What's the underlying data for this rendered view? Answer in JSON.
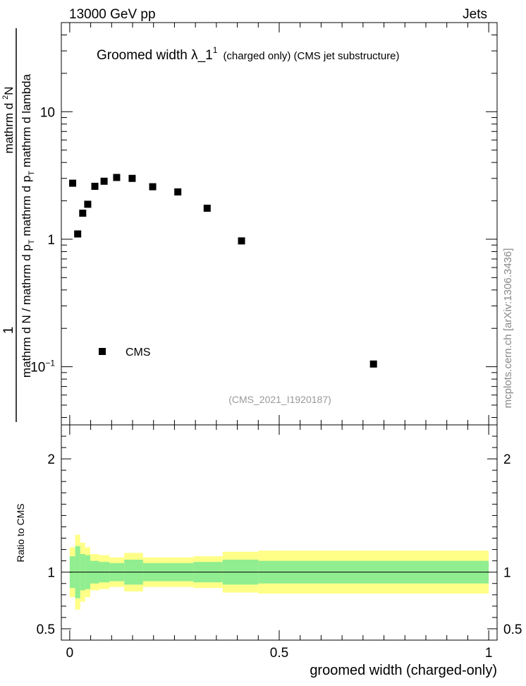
{
  "header": {
    "left": "13000 GeV pp",
    "right": "Jets"
  },
  "side_label": "mcplots.cern.ch [arXiv:1306.3436]",
  "analysis_label": "(CMS_2021_I1920187)",
  "colors": {
    "data": "#000000",
    "band_inner": "#90ee90",
    "band_outer": "#ffff88",
    "axis": "#000000",
    "note": "#888888"
  },
  "chart_data": [
    {
      "type": "scatter",
      "panel": "main",
      "title_main": "Groomed width  λ_1",
      "title_sup": "1",
      "title_suffix": "(charged only) (CMS jet substructure)",
      "ylabel_line1": "1",
      "ylabel_line2": "mathrm d N / mathrm d p_T mathrm d p_T mathrm d lambda",
      "ylabel_display": {
        "num_pre": "mathrm d",
        "num_sup": "2",
        "num_post": "N",
        "den_a": "mathrm d N / mathrm d p",
        "den_a_sub": "T",
        "den_b": "mathrm d p",
        "den_b_sub": "T",
        "den_c": "mathrm d lambda"
      },
      "yscale": "log",
      "xlim": [
        -0.02,
        1.02
      ],
      "ylim": [
        0.035,
        50
      ],
      "yticks": [
        {
          "value": 10,
          "label": "10"
        },
        {
          "value": 1,
          "label": "1"
        },
        {
          "value": 0.1,
          "label_base": "10",
          "label_exp": "−1"
        }
      ],
      "legend": {
        "position": "bottom-left",
        "entries": [
          "CMS"
        ]
      },
      "series": [
        {
          "name": "CMS",
          "marker": "square",
          "x": [
            0.007,
            0.019,
            0.031,
            0.043,
            0.06,
            0.082,
            0.112,
            0.149,
            0.198,
            0.258,
            0.328,
            0.41,
            0.725
          ],
          "y": [
            2.75,
            1.1,
            1.6,
            1.88,
            2.6,
            2.85,
            3.05,
            3.0,
            2.58,
            2.35,
            1.75,
            0.97,
            0.105
          ]
        }
      ]
    },
    {
      "type": "area",
      "panel": "ratio",
      "ylabel": "Ratio to CMS",
      "xlabel": "groomed width (charged-only)",
      "xlim": [
        -0.02,
        1.02
      ],
      "ylim": [
        0.4,
        2.3
      ],
      "xticks": [
        {
          "value": 0,
          "label": "0"
        },
        {
          "value": 0.5,
          "label": "0.5"
        },
        {
          "value": 1,
          "label": "1"
        }
      ],
      "yticks": [
        {
          "value": 0.5,
          "label": "0.5"
        },
        {
          "value": 1,
          "label": "1"
        },
        {
          "value": 2,
          "label": "2"
        }
      ],
      "reference_line": 1,
      "bins": [
        {
          "x_lo": 0.0,
          "x_hi": 0.013,
          "inner": [
            0.86,
            1.14
          ],
          "outer": [
            0.78,
            1.22
          ]
        },
        {
          "x_lo": 0.013,
          "x_hi": 0.025,
          "inner": [
            0.77,
            1.23
          ],
          "outer": [
            0.67,
            1.33
          ]
        },
        {
          "x_lo": 0.025,
          "x_hi": 0.037,
          "inner": [
            0.84,
            1.16
          ],
          "outer": [
            0.74,
            1.26
          ]
        },
        {
          "x_lo": 0.037,
          "x_hi": 0.049,
          "inner": [
            0.85,
            1.15
          ],
          "outer": [
            0.78,
            1.22
          ]
        },
        {
          "x_lo": 0.049,
          "x_hi": 0.07,
          "inner": [
            0.9,
            1.1
          ],
          "outer": [
            0.84,
            1.16
          ]
        },
        {
          "x_lo": 0.07,
          "x_hi": 0.095,
          "inner": [
            0.91,
            1.09
          ],
          "outer": [
            0.85,
            1.15
          ]
        },
        {
          "x_lo": 0.095,
          "x_hi": 0.13,
          "inner": [
            0.92,
            1.08
          ],
          "outer": [
            0.87,
            1.13
          ]
        },
        {
          "x_lo": 0.13,
          "x_hi": 0.175,
          "inner": [
            0.89,
            1.11
          ],
          "outer": [
            0.83,
            1.17
          ]
        },
        {
          "x_lo": 0.175,
          "x_hi": 0.23,
          "inner": [
            0.92,
            1.08
          ],
          "outer": [
            0.87,
            1.13
          ]
        },
        {
          "x_lo": 0.23,
          "x_hi": 0.295,
          "inner": [
            0.92,
            1.08
          ],
          "outer": [
            0.87,
            1.13
          ]
        },
        {
          "x_lo": 0.295,
          "x_hi": 0.365,
          "inner": [
            0.91,
            1.09
          ],
          "outer": [
            0.86,
            1.14
          ]
        },
        {
          "x_lo": 0.365,
          "x_hi": 0.45,
          "inner": [
            0.89,
            1.11
          ],
          "outer": [
            0.82,
            1.18
          ]
        },
        {
          "x_lo": 0.45,
          "x_hi": 1.0,
          "inner": [
            0.9,
            1.1
          ],
          "outer": [
            0.81,
            1.19
          ]
        }
      ]
    }
  ]
}
